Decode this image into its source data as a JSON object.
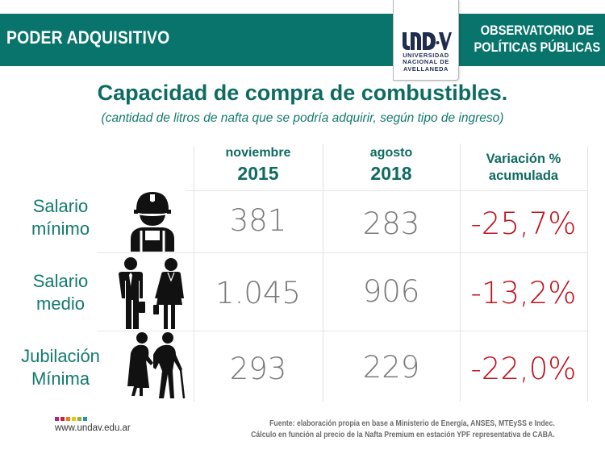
{
  "header": {
    "section_title": "PODER ADQUISITIVO",
    "observatory_line1": "OBSERVATORIO DE",
    "observatory_line2": "POLÍTICAS PÚBLICAS",
    "logo": {
      "mark": "UNDAV",
      "line1": "UNIVERSIDAD",
      "line2": "NACIONAL DE",
      "line3": "AVELLANEDA"
    },
    "band_color": "#08746c"
  },
  "title": "Capacidad de compra de combustibles.",
  "subtitle": "(cantidad de litros de nafta que se podría adquirir, según tipo de ingreso)",
  "table": {
    "columns": [
      {
        "line1": "noviembre",
        "line2": "2015"
      },
      {
        "line1": "agosto",
        "line2": "2018"
      },
      {
        "line1": "Variación %",
        "line2": "acumulada"
      }
    ],
    "rows": [
      {
        "label_line1": "Salario",
        "label_line2": "mínimo",
        "icon": "construction-worker-icon",
        "v2015": "381",
        "v2018": "283",
        "variation": "-25,7%"
      },
      {
        "label_line1": "Salario",
        "label_line2": "medio",
        "icon": "office-workers-icon",
        "v2015": "1.045",
        "v2018": "906",
        "variation": "-13,2%"
      },
      {
        "label_line1": "Jubilación",
        "label_line2": "Mínima",
        "icon": "elderly-couple-icon",
        "v2015": "293",
        "v2018": "229",
        "variation": "-22,0%"
      }
    ],
    "variation_color": "#c0121d"
  },
  "footer": {
    "url": "www.undav.edu.ar",
    "brand_colors": [
      "#b0257e",
      "#d4202c",
      "#ef7d1a",
      "#f2c300",
      "#8cb33b",
      "#1f9aa6"
    ],
    "source_line1": "Fuente: elaboración propia en base a Ministerio de Energía, ANSES, MTEySS e Indec.",
    "source_line2": "Cálculo en función al precio de la Nafta Premium en estación YPF representativa de CABA."
  }
}
